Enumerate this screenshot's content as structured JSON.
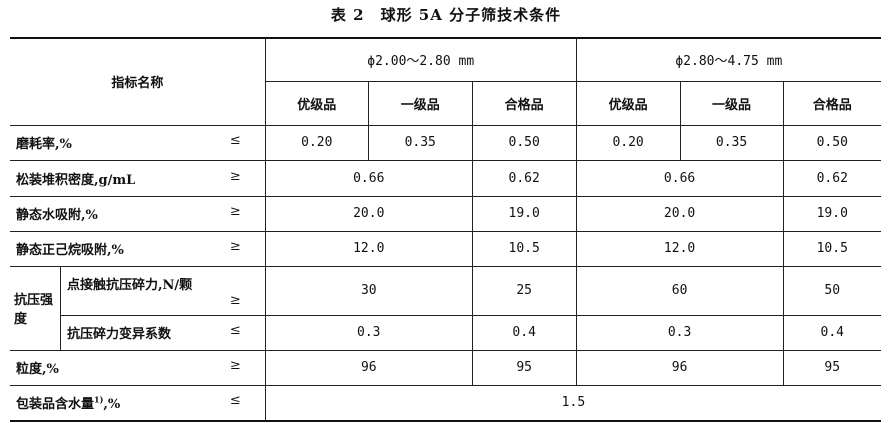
{
  "title": "表 2　球形 5A 分子筛技术条件",
  "header": {
    "name": "指标名称",
    "range1": "ϕ2.00～2.80 mm",
    "range2": "ϕ2.80～4.75 mm",
    "grades": [
      "优级品",
      "一级品",
      "合格品",
      "优级品",
      "一级品",
      "合格品"
    ]
  },
  "rows": {
    "wear": {
      "label": "磨耗率,%",
      "sym": "≤",
      "values": [
        "0.20",
        "0.35",
        "0.50",
        "0.20",
        "0.35",
        "0.50"
      ]
    },
    "density": {
      "label": "松装堆积密度,g/mL",
      "sym": "≥",
      "values": [
        "0.66",
        "0.62",
        "0.66",
        "0.62"
      ]
    },
    "water": {
      "label": "静态水吸附,%",
      "sym": "≥",
      "values": [
        "20.0",
        "19.0",
        "20.0",
        "19.0"
      ]
    },
    "hexane": {
      "label": "静态正己烷吸附,%",
      "sym": "≥",
      "values": [
        "12.0",
        "10.5",
        "12.0",
        "10.5"
      ]
    },
    "strength": {
      "group": "抗压强度",
      "crush": {
        "label": "点接触抗压碎力,N/颗",
        "sym": "≥",
        "values": [
          "30",
          "25",
          "60",
          "50"
        ]
      },
      "cv": {
        "label": "抗压碎力变异系数",
        "sym": "≤",
        "values": [
          "0.3",
          "0.4",
          "0.3",
          "0.4"
        ]
      }
    },
    "size": {
      "label": "粒度,%",
      "sym": "≥",
      "values": [
        "96",
        "95",
        "96",
        "95"
      ]
    },
    "moisture": {
      "label": "包装品含水量",
      "sup": "1)",
      "unit": ",%",
      "sym": "≤",
      "value": "1.5"
    }
  }
}
